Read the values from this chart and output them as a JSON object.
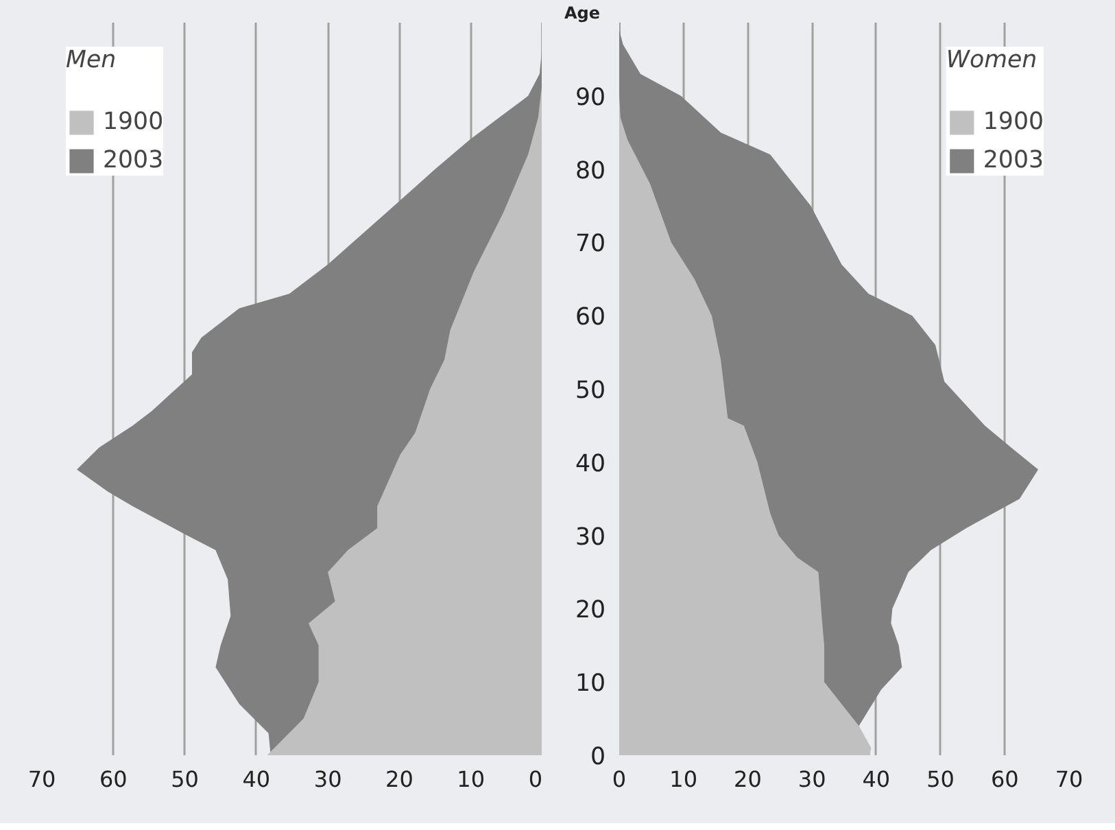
{
  "chart_data": [
    {
      "type": "area",
      "orientation": "horizontal",
      "legend_title": "Men",
      "legend": "top left",
      "grid": "x",
      "tick_labels": "x",
      "xlim": [
        70,
        0
      ],
      "xticks": [
        70,
        60,
        50,
        40,
        30,
        20,
        10,
        0
      ],
      "ylim": [
        0,
        100
      ],
      "yticks": [
        0,
        10,
        20,
        30,
        40,
        50,
        60,
        70,
        80,
        90
      ],
      "series": [
        {
          "name": "2003",
          "color": "#808080",
          "x": [
            0,
            3,
            7,
            12,
            15,
            19,
            24,
            28,
            30,
            34,
            36,
            39,
            42,
            45,
            47,
            52,
            55,
            57,
            61,
            63,
            67,
            74,
            80,
            84,
            87,
            90,
            93,
            97
          ],
          "values": [
            38,
            38.3,
            42.4,
            45.7,
            45,
            43.6,
            44,
            45.7,
            49.7,
            57.3,
            60.8,
            65.1,
            62,
            57.3,
            54.6,
            49,
            49,
            47.7,
            42.4,
            35.4,
            30,
            21.9,
            15,
            10.2,
            6.1,
            2,
            0.4,
            0
          ]
        },
        {
          "name": "1900",
          "color": "#c0c0c0",
          "x": [
            0,
            5,
            10,
            15,
            18,
            21,
            25,
            28,
            31,
            34,
            41,
            44,
            50,
            54,
            58,
            66,
            74,
            82,
            87,
            92
          ],
          "values": [
            38.5,
            33.4,
            31.3,
            31.3,
            32.7,
            29,
            30,
            27.2,
            23.1,
            23.1,
            19.9,
            17.8,
            15.7,
            13.7,
            12.9,
            9.6,
            5.5,
            2,
            0.6,
            0
          ]
        }
      ]
    },
    {
      "type": "area",
      "orientation": "horizontal",
      "legend_title": "Women",
      "legend": "top right",
      "grid": "x",
      "ylabel": "Age",
      "xlim": [
        0,
        70
      ],
      "xticks": [
        0,
        10,
        20,
        30,
        40,
        50,
        60,
        70
      ],
      "ylim": [
        0,
        100
      ],
      "yticks": [
        0,
        10,
        20,
        30,
        40,
        50,
        60,
        70,
        80,
        90
      ],
      "series": [
        {
          "name": "2003",
          "color": "#808080",
          "x": [
            0,
            4,
            9,
            12,
            15,
            18,
            20,
            25,
            28,
            31,
            35,
            39,
            42,
            45,
            51,
            56,
            60,
            63,
            67,
            75,
            82,
            85,
            90,
            93,
            97,
            99
          ],
          "values": [
            39,
            37.3,
            40.8,
            44,
            43.5,
            42.3,
            42.5,
            45,
            48.5,
            54,
            62.3,
            65.2,
            61,
            56.9,
            50.6,
            49.2,
            45.6,
            38.8,
            34.6,
            29.8,
            23.5,
            15.8,
            9.6,
            3.3,
            0.6,
            0
          ]
        },
        {
          "name": "1900",
          "color": "#c0c0c0",
          "x": [
            0,
            1,
            4,
            7,
            10,
            15,
            19,
            25,
            27,
            30,
            33,
            40,
            45,
            46,
            54,
            60,
            65,
            70,
            78,
            84,
            87,
            90
          ],
          "values": [
            39,
            39.2,
            37.3,
            34.6,
            31.9,
            31.9,
            31.5,
            31,
            27.7,
            24.8,
            23.5,
            21.5,
            19.4,
            16.9,
            15.8,
            14.4,
            11.7,
            8.1,
            4.8,
            1.3,
            0.2,
            0
          ]
        }
      ]
    }
  ]
}
